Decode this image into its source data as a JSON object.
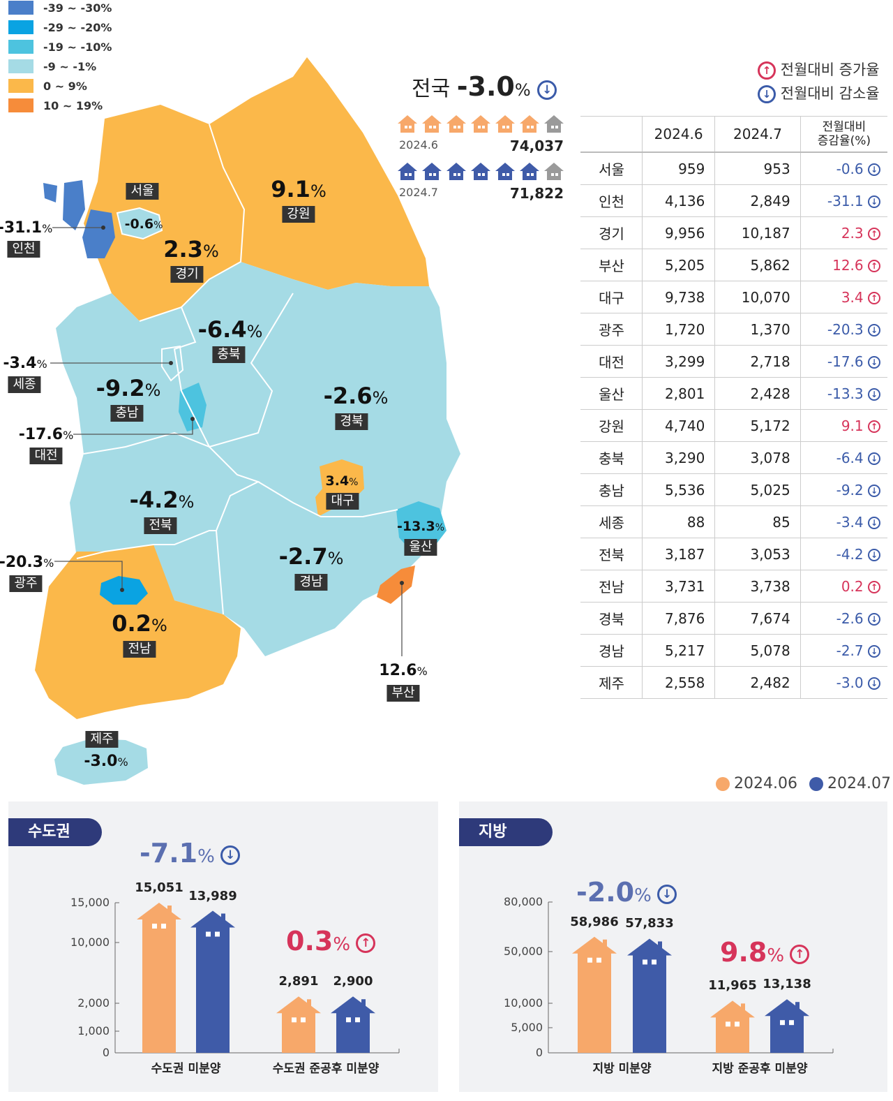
{
  "legend": [
    {
      "label": "-39 ~ -30%",
      "color": "#4a7fc9"
    },
    {
      "label": "-29 ~ -20%",
      "color": "#0aa3e2"
    },
    {
      "label": "-19 ~ -10%",
      "color": "#4dc3df"
    },
    {
      "label": "-9 ~ -1%",
      "color": "#a5dbe5"
    },
    {
      "label": "0 ~ 9%",
      "color": "#fbb84a"
    },
    {
      "label": "10 ~ 19%",
      "color": "#f68c3a"
    }
  ],
  "national": {
    "label": "전국",
    "value": "-3.0",
    "unit": "%"
  },
  "arrow_legend": {
    "up": "전월대비 증가율",
    "down": "전월대비 감소율"
  },
  "houses": [
    {
      "period": "2024.6",
      "total": "74,037",
      "color": "#f7a86a"
    },
    {
      "period": "2024.7",
      "total": "71,822",
      "color": "#3f5ba8"
    }
  ],
  "map_regions": [
    {
      "name": "서울",
      "pct": "-0.6"
    },
    {
      "name": "인천",
      "pct": "-31.1"
    },
    {
      "name": "경기",
      "pct": "2.3"
    },
    {
      "name": "강원",
      "pct": "9.1"
    },
    {
      "name": "충북",
      "pct": "-6.4"
    },
    {
      "name": "세종",
      "pct": "-3.4"
    },
    {
      "name": "충남",
      "pct": "-9.2"
    },
    {
      "name": "대전",
      "pct": "-17.6"
    },
    {
      "name": "경북",
      "pct": "-2.6"
    },
    {
      "name": "대구",
      "pct": "3.4"
    },
    {
      "name": "전북",
      "pct": "-4.2"
    },
    {
      "name": "울산",
      "pct": "-13.3"
    },
    {
      "name": "광주",
      "pct": "-20.3"
    },
    {
      "name": "경남",
      "pct": "-2.7"
    },
    {
      "name": "전남",
      "pct": "0.2"
    },
    {
      "name": "부산",
      "pct": "12.6"
    },
    {
      "name": "제주",
      "pct": "-3.0"
    }
  ],
  "pct_unit": "%",
  "table": {
    "headers": [
      "",
      "2024.6",
      "2024.7",
      "전월대비\n증감율(%)"
    ],
    "rows": [
      {
        "region": "서울",
        "jun": "959",
        "jul": "953",
        "chg": "-0.6",
        "dir": "down"
      },
      {
        "region": "인천",
        "jun": "4,136",
        "jul": "2,849",
        "chg": "-31.1",
        "dir": "down"
      },
      {
        "region": "경기",
        "jun": "9,956",
        "jul": "10,187",
        "chg": "2.3",
        "dir": "up"
      },
      {
        "region": "부산",
        "jun": "5,205",
        "jul": "5,862",
        "chg": "12.6",
        "dir": "up"
      },
      {
        "region": "대구",
        "jun": "9,738",
        "jul": "10,070",
        "chg": "3.4",
        "dir": "up"
      },
      {
        "region": "광주",
        "jun": "1,720",
        "jul": "1,370",
        "chg": "-20.3",
        "dir": "down"
      },
      {
        "region": "대전",
        "jun": "3,299",
        "jul": "2,718",
        "chg": "-17.6",
        "dir": "down"
      },
      {
        "region": "울산",
        "jun": "2,801",
        "jul": "2,428",
        "chg": "-13.3",
        "dir": "down"
      },
      {
        "region": "강원",
        "jun": "4,740",
        "jul": "5,172",
        "chg": "9.1",
        "dir": "up"
      },
      {
        "region": "충북",
        "jun": "3,290",
        "jul": "3,078",
        "chg": "-6.4",
        "dir": "down"
      },
      {
        "region": "충남",
        "jun": "5,536",
        "jul": "5,025",
        "chg": "-9.2",
        "dir": "down"
      },
      {
        "region": "세종",
        "jun": "88",
        "jul": "85",
        "chg": "-3.4",
        "dir": "down"
      },
      {
        "region": "전북",
        "jun": "3,187",
        "jul": "3,053",
        "chg": "-4.2",
        "dir": "down"
      },
      {
        "region": "전남",
        "jun": "3,731",
        "jul": "3,738",
        "chg": "0.2",
        "dir": "up"
      },
      {
        "region": "경북",
        "jun": "7,876",
        "jul": "7,674",
        "chg": "-2.6",
        "dir": "down"
      },
      {
        "region": "경남",
        "jun": "5,217",
        "jul": "5,078",
        "chg": "-2.7",
        "dir": "down"
      },
      {
        "region": "제주",
        "jun": "2,558",
        "jul": "2,482",
        "chg": "-3.0",
        "dir": "down"
      }
    ]
  },
  "chart_legend": [
    {
      "label": "2024.06",
      "color": "#f7a86a"
    },
    {
      "label": "2024.07",
      "color": "#3f5ba8"
    }
  ],
  "chart_data": [
    {
      "type": "bar",
      "title": "수도권",
      "yticks": [
        "15,000",
        "10,000",
        "2,000",
        "1,000",
        "0"
      ],
      "categories": [
        "수도권 미분양",
        "수도권 준공후 미분양"
      ],
      "series": [
        {
          "name": "2024.06",
          "values": [
            15051,
            2891
          ],
          "labels": [
            "15,051",
            "2,891"
          ]
        },
        {
          "name": "2024.07",
          "values": [
            13989,
            2900
          ],
          "labels": [
            "13,989",
            "2,900"
          ]
        }
      ],
      "changes": [
        {
          "value": "-7.1",
          "dir": "down"
        },
        {
          "value": "0.3",
          "dir": "up"
        }
      ]
    },
    {
      "type": "bar",
      "title": "지방",
      "yticks": [
        "80,000",
        "50,000",
        "10,000",
        "5,000",
        "0"
      ],
      "categories": [
        "지방 미분양",
        "지방 준공후 미분양"
      ],
      "series": [
        {
          "name": "2024.06",
          "values": [
            58986,
            11965
          ],
          "labels": [
            "58,986",
            "11,965"
          ]
        },
        {
          "name": "2024.07",
          "values": [
            57833,
            13138
          ],
          "labels": [
            "57,833",
            "13,138"
          ]
        }
      ],
      "changes": [
        {
          "value": "-2.0",
          "dir": "down"
        },
        {
          "value": "9.8",
          "dir": "up"
        }
      ]
    }
  ]
}
